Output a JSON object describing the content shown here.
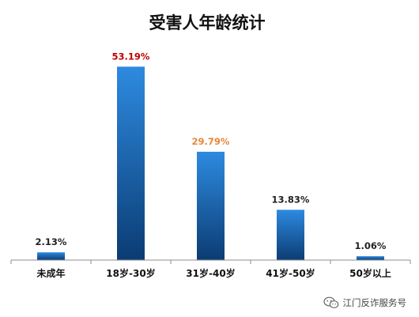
{
  "chart_data": {
    "type": "bar",
    "title": "受害人年龄统计",
    "categories": [
      "未成年",
      "18岁-30岁",
      "31岁-40岁",
      "41岁-50岁",
      "50岁以上"
    ],
    "values": [
      2.13,
      53.19,
      29.79,
      13.83,
      1.06
    ],
    "data_labels": [
      "2.13%",
      "53.19%",
      "29.79%",
      "13.83%",
      "1.06%"
    ],
    "label_colors": [
      "#222222",
      "#c00000",
      "#e8873a",
      "#222222",
      "#222222"
    ],
    "bar_color_top": "#2e8ae0",
    "bar_color_bottom": "#0b3c73",
    "ylim": [
      0,
      60
    ],
    "grid": false,
    "legend": "none"
  },
  "watermark": {
    "icon": "wechat-icon",
    "text": "江门反诈服务号"
  }
}
